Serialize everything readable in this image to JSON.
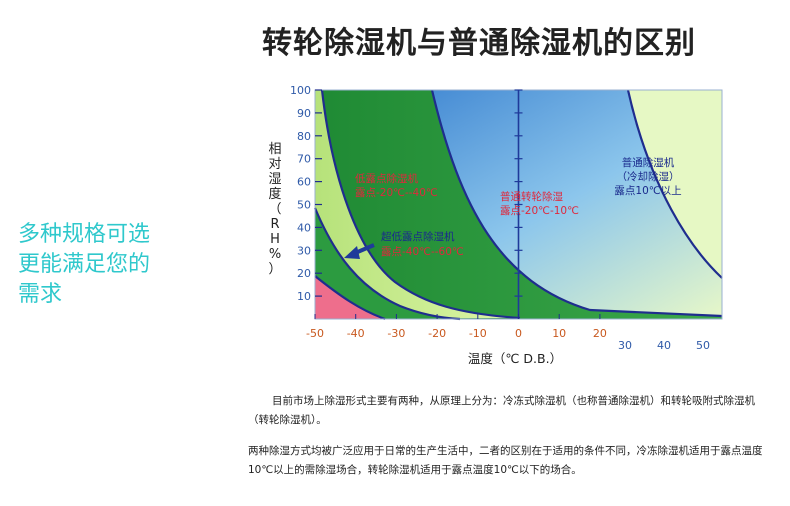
{
  "title": "转轮除湿机与普通除湿机的区别",
  "slogan": [
    "多种规格可选",
    "更能满足您的",
    "需求"
  ],
  "chart_data": {
    "type": "area",
    "ylabel": [
      "相",
      "对",
      "湿",
      "度",
      "（",
      "R",
      "H",
      "%",
      "）"
    ],
    "xlabel": "温度（℃ D.B.）",
    "ylim": [
      0,
      100
    ],
    "xlim": [
      -50,
      50
    ],
    "yticks": [
      "10",
      "20",
      "30",
      "40",
      "50",
      "60",
      "70",
      "80",
      "90",
      "100"
    ],
    "xticks_lower": [
      "-50",
      "-40",
      "-30",
      "-20",
      "-10",
      "0",
      "10",
      "20"
    ],
    "xticks_upper": [
      "30",
      "40",
      "50"
    ],
    "regions": [
      {
        "lines": [
          "低露点除湿机",
          "露点-20℃--40℃"
        ],
        "dew_point_range": [
          -20,
          -40
        ]
      },
      {
        "lines": [
          "超低露点除湿机",
          "露点-40℃--60℃"
        ],
        "dew_point_range": [
          -40,
          -60
        ]
      },
      {
        "lines": [
          "普通转轮除湿",
          "露点-20℃-10℃"
        ],
        "dew_point_range": [
          -20,
          10
        ]
      },
      {
        "lines": [
          "普通除湿机",
          "（冷却除湿）",
          "露点10℃以上"
        ],
        "dew_point_min": 10
      }
    ],
    "colors": {
      "red_zone": "#ee6e8c",
      "dark_green": "#2c9b40",
      "light_green": "#c8ec84",
      "blue": "#3e86d0",
      "pale": "#e6f8c4",
      "curve": "#1f2d8e",
      "axis_label": "#c8581e",
      "tick_blue": "#2f5aa8"
    }
  },
  "paragraph1": "目前市场上除湿形式主要有两种，从原理上分为：冷冻式除湿机（也称普通除湿机）和转轮吸附式除湿机（转轮除湿机）。",
  "paragraph2": "两种除湿方式均被广泛应用于日常的生产生活中，二者的区别在于适用的条件不同，冷冻除湿机适用于露点温度10℃以上的需除湿场合，转轮除湿机适用于露点温度10℃以下的场合。"
}
